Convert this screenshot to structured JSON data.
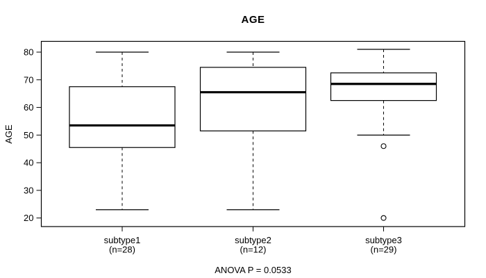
{
  "chart_data": {
    "type": "boxplot",
    "title": "AGE",
    "ylabel": "AGE",
    "xlabel": "",
    "annotation": "ANOVA P = 0.0533",
    "ylim": [
      16.9,
      83.9
    ],
    "yticks": [
      20,
      30,
      40,
      50,
      60,
      70,
      80
    ],
    "grid": false,
    "legend": "none",
    "groups": [
      {
        "label": "subtype1",
        "sublabel": "(n=28)",
        "n": 28,
        "whisker_low": 23,
        "q1": 45.5,
        "median": 53.5,
        "q3": 67.5,
        "whisker_high": 80,
        "outliers": []
      },
      {
        "label": "subtype2",
        "sublabel": "(n=12)",
        "n": 12,
        "whisker_low": 23,
        "q1": 51.5,
        "median": 65.5,
        "q3": 74.5,
        "whisker_high": 80,
        "outliers": []
      },
      {
        "label": "subtype3",
        "sublabel": "(n=29)",
        "n": 29,
        "whisker_low": 50,
        "q1": 62.5,
        "median": 68.5,
        "q3": 72.5,
        "whisker_high": 81,
        "outliers": [
          46,
          20
        ]
      }
    ],
    "colors": {
      "line": "#000000",
      "box_fill": "#ffffff",
      "background": "#ffffff"
    }
  }
}
